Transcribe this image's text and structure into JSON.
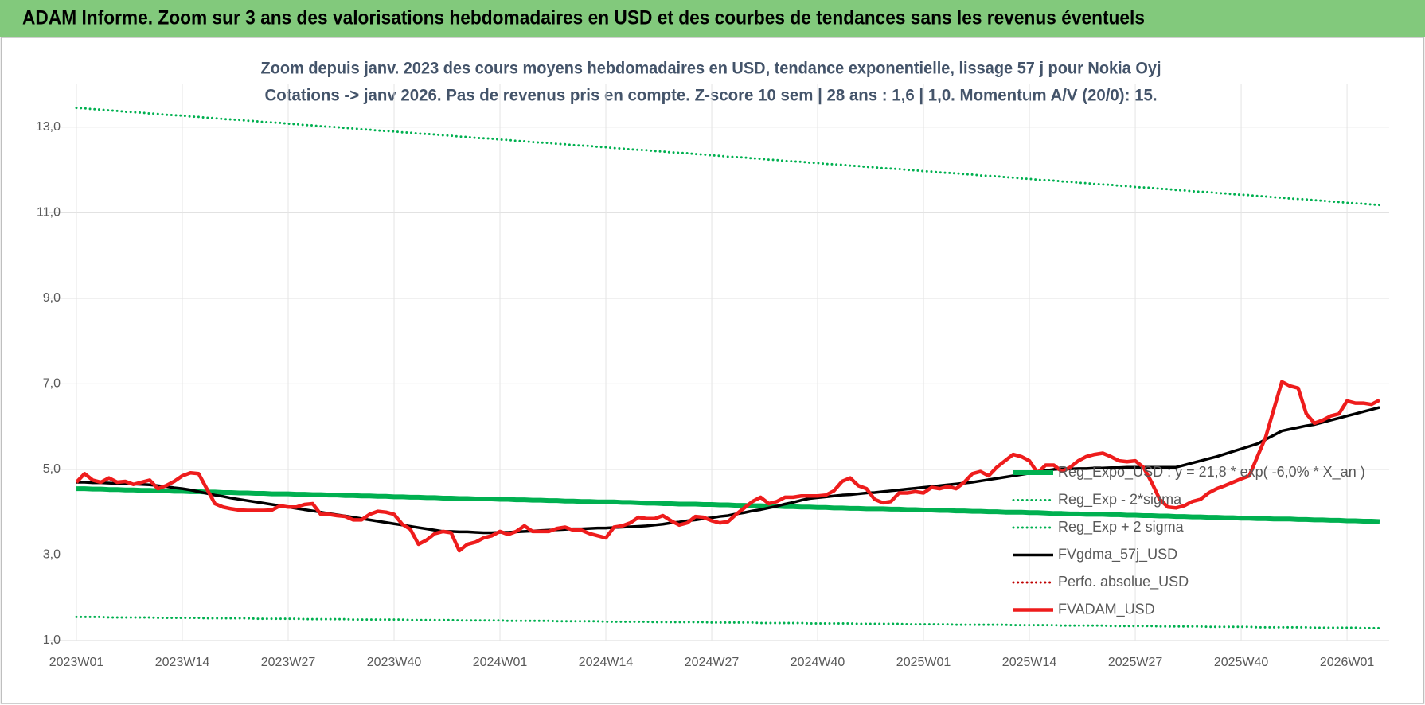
{
  "chart_data": {
    "type": "line",
    "title": "ADAM Informe. Zoom sur 3 ans des valorisations hebdomadaires en USD et des courbes de tendances sans les revenus éventuels",
    "subtitle": [
      "Zoom depuis janv. 2023 des cours moyens hebdomadaires en USD, tendance exponentielle, lissage 57 j pour Nokia Oyj",
      "Cotations -> janv 2026. Pas de revenus pris en compte. Z-score 10 sem  | 28 ans : 1,6 | 1,0. Momentum A/V (20/0): 15."
    ],
    "categories": [
      "2023W01",
      null,
      null,
      null,
      null,
      null,
      null,
      null,
      null,
      null,
      null,
      null,
      null,
      "2023W14",
      null,
      null,
      null,
      null,
      null,
      null,
      null,
      null,
      null,
      null,
      null,
      null,
      "2023W27",
      null,
      null,
      null,
      null,
      null,
      null,
      null,
      null,
      null,
      null,
      null,
      null,
      "2023W40",
      null,
      null,
      null,
      null,
      null,
      null,
      null,
      null,
      null,
      null,
      null,
      null,
      "2024W01",
      null,
      null,
      null,
      null,
      null,
      null,
      null,
      null,
      null,
      null,
      null,
      null,
      "2024W14",
      null,
      null,
      null,
      null,
      null,
      null,
      null,
      null,
      null,
      null,
      null,
      null,
      "2024W27",
      null,
      null,
      null,
      null,
      null,
      null,
      null,
      null,
      null,
      null,
      null,
      null,
      "2024W40",
      null,
      null,
      null,
      null,
      null,
      null,
      null,
      null,
      null,
      null,
      null,
      null,
      "2025W01",
      null,
      null,
      null,
      null,
      null,
      null,
      null,
      null,
      null,
      null,
      null,
      null,
      "2025W14",
      null,
      null,
      null,
      null,
      null,
      null,
      null,
      null,
      null,
      null,
      null,
      null,
      "2025W27",
      null,
      null,
      null,
      null,
      null,
      null,
      null,
      null,
      null,
      null,
      null,
      null,
      "2025W40",
      null,
      null,
      null,
      null,
      null,
      null,
      null,
      null,
      null,
      null,
      null,
      null,
      "2026W01",
      null,
      null,
      null,
      null
    ],
    "ylim": [
      1,
      14
    ],
    "yticks": [
      {
        "value": 1,
        "label": "1,0"
      },
      {
        "value": 3,
        "label": "3,0"
      },
      {
        "value": 5,
        "label": "5,0"
      },
      {
        "value": 7,
        "label": "7,0"
      },
      {
        "value": 9,
        "label": "9,0"
      },
      {
        "value": 11,
        "label": "11,0"
      },
      {
        "value": 13,
        "label": "13,0"
      }
    ],
    "grid": true,
    "legend": "lower right",
    "series": [
      {
        "name": "Reg_Expo_USD : y = 21,8 * exp( -6,0% *  X_an )",
        "color": "#00b050",
        "dash": "solid",
        "width": 6,
        "values": [
          4.55,
          4.55,
          4.54,
          4.54,
          4.53,
          4.53,
          4.52,
          4.52,
          4.51,
          4.51,
          4.5,
          4.5,
          4.49,
          4.49,
          4.48,
          4.48,
          4.47,
          4.47,
          4.46,
          4.46,
          4.45,
          4.45,
          4.44,
          4.44,
          4.43,
          4.43,
          4.43,
          4.42,
          4.42,
          4.41,
          4.41,
          4.4,
          4.4,
          4.39,
          4.39,
          4.38,
          4.38,
          4.37,
          4.37,
          4.36,
          4.36,
          4.35,
          4.35,
          4.34,
          4.34,
          4.33,
          4.33,
          4.32,
          4.32,
          4.31,
          4.31,
          4.31,
          4.3,
          4.3,
          4.29,
          4.29,
          4.28,
          4.28,
          4.27,
          4.27,
          4.26,
          4.26,
          4.25,
          4.25,
          4.24,
          4.24,
          4.24,
          4.23,
          4.23,
          4.22,
          4.21,
          4.21,
          4.2,
          4.2,
          4.19,
          4.19,
          4.19,
          4.18,
          4.18,
          4.17,
          4.17,
          4.16,
          4.16,
          4.15,
          4.15,
          4.14,
          4.14,
          4.13,
          4.13,
          4.12,
          4.12,
          4.11,
          4.11,
          4.1,
          4.1,
          4.09,
          4.09,
          4.08,
          4.08,
          4.08,
          4.07,
          4.07,
          4.06,
          4.06,
          4.05,
          4.05,
          4.04,
          4.04,
          4.03,
          4.03,
          4.02,
          4.02,
          4.01,
          4.01,
          4.0,
          4.0,
          4.0,
          3.99,
          3.99,
          3.98,
          3.97,
          3.97,
          3.96,
          3.96,
          3.95,
          3.95,
          3.95,
          3.94,
          3.94,
          3.93,
          3.93,
          3.92,
          3.92,
          3.91,
          3.91,
          3.9,
          3.9,
          3.89,
          3.89,
          3.88,
          3.88,
          3.87,
          3.87,
          3.86,
          3.86,
          3.85,
          3.85,
          3.84,
          3.84,
          3.84,
          3.83,
          3.83,
          3.82,
          3.82,
          3.81,
          3.81,
          3.8,
          3.8,
          3.79,
          3.79,
          3.78
        ]
      },
      {
        "name": "Reg_Exp - 2*sigma",
        "color": "#00b050",
        "dash": "dotted",
        "width": 3,
        "values": [
          1.55,
          1.55,
          1.55,
          1.55,
          1.54,
          1.54,
          1.54,
          1.54,
          1.54,
          1.54,
          1.53,
          1.53,
          1.53,
          1.53,
          1.53,
          1.53,
          1.52,
          1.52,
          1.52,
          1.52,
          1.52,
          1.52,
          1.51,
          1.51,
          1.51,
          1.51,
          1.51,
          1.51,
          1.5,
          1.5,
          1.5,
          1.5,
          1.5,
          1.5,
          1.49,
          1.49,
          1.49,
          1.49,
          1.49,
          1.49,
          1.49,
          1.48,
          1.48,
          1.48,
          1.48,
          1.48,
          1.48,
          1.47,
          1.47,
          1.47,
          1.47,
          1.47,
          1.47,
          1.46,
          1.46,
          1.46,
          1.46,
          1.46,
          1.46,
          1.45,
          1.45,
          1.45,
          1.45,
          1.45,
          1.45,
          1.44,
          1.44,
          1.44,
          1.44,
          1.44,
          1.44,
          1.43,
          1.43,
          1.43,
          1.43,
          1.43,
          1.43,
          1.43,
          1.42,
          1.42,
          1.42,
          1.42,
          1.42,
          1.42,
          1.41,
          1.41,
          1.41,
          1.41,
          1.41,
          1.41,
          1.4,
          1.4,
          1.4,
          1.4,
          1.4,
          1.4,
          1.39,
          1.39,
          1.39,
          1.39,
          1.39,
          1.39,
          1.38,
          1.38,
          1.38,
          1.38,
          1.38,
          1.38,
          1.37,
          1.37,
          1.37,
          1.37,
          1.37,
          1.37,
          1.37,
          1.36,
          1.36,
          1.36,
          1.36,
          1.36,
          1.36,
          1.35,
          1.35,
          1.35,
          1.35,
          1.35,
          1.35,
          1.34,
          1.34,
          1.34,
          1.34,
          1.34,
          1.34,
          1.33,
          1.33,
          1.33,
          1.33,
          1.33,
          1.33,
          1.32,
          1.32,
          1.32,
          1.32,
          1.32,
          1.32,
          1.31,
          1.31,
          1.31,
          1.31,
          1.31,
          1.31,
          1.31,
          1.3,
          1.3,
          1.3,
          1.3,
          1.3,
          1.3,
          1.29,
          1.29,
          1.29
        ]
      },
      {
        "name": "Reg_Exp + 2 sigma",
        "color": "#00b050",
        "dash": "dotted",
        "width": 3,
        "values": [
          13.45,
          13.44,
          13.42,
          13.41,
          13.39,
          13.38,
          13.36,
          13.35,
          13.34,
          13.32,
          13.31,
          13.29,
          13.28,
          13.27,
          13.25,
          13.24,
          13.22,
          13.21,
          13.19,
          13.18,
          13.17,
          13.15,
          13.14,
          13.12,
          13.11,
          13.1,
          13.08,
          13.07,
          13.05,
          13.04,
          13.02,
          13.01,
          13.0,
          12.98,
          12.97,
          12.95,
          12.94,
          12.92,
          12.91,
          12.9,
          12.88,
          12.87,
          12.85,
          12.84,
          12.83,
          12.81,
          12.8,
          12.78,
          12.77,
          12.75,
          12.74,
          12.73,
          12.71,
          12.7,
          12.68,
          12.67,
          12.65,
          12.64,
          12.63,
          12.61,
          12.6,
          12.58,
          12.57,
          12.56,
          12.54,
          12.53,
          12.51,
          12.5,
          12.48,
          12.47,
          12.46,
          12.44,
          12.43,
          12.41,
          12.4,
          12.39,
          12.37,
          12.36,
          12.34,
          12.33,
          12.31,
          12.3,
          12.29,
          12.27,
          12.26,
          12.24,
          12.23,
          12.21,
          12.2,
          12.19,
          12.17,
          12.16,
          12.14,
          12.13,
          12.12,
          12.1,
          12.09,
          12.07,
          12.06,
          12.04,
          12.03,
          12.02,
          12.0,
          11.99,
          11.97,
          11.96,
          11.94,
          11.93,
          11.92,
          11.9,
          11.89,
          11.87,
          11.86,
          11.85,
          11.83,
          11.82,
          11.8,
          11.79,
          11.77,
          11.76,
          11.75,
          11.73,
          11.72,
          11.7,
          11.69,
          11.67,
          11.66,
          11.65,
          11.63,
          11.62,
          11.6,
          11.59,
          11.58,
          11.56,
          11.55,
          11.53,
          11.52,
          11.5,
          11.49,
          11.48,
          11.46,
          11.45,
          11.43,
          11.42,
          11.41,
          11.39,
          11.38,
          11.36,
          11.35,
          11.33,
          11.32,
          11.31,
          11.29,
          11.28,
          11.26,
          11.25,
          11.23,
          11.22,
          11.21,
          11.19,
          11.18
        ]
      },
      {
        "name": "FVgdma_57j_USD",
        "color": "#000000",
        "dash": "solid",
        "width": 3.5,
        "values": [
          4.7,
          4.7,
          4.69,
          4.69,
          4.68,
          4.67,
          4.67,
          4.66,
          4.65,
          4.64,
          4.62,
          4.6,
          4.57,
          4.55,
          4.52,
          4.48,
          4.44,
          4.4,
          4.37,
          4.33,
          4.3,
          4.27,
          4.24,
          4.21,
          4.18,
          4.15,
          4.12,
          4.09,
          4.06,
          4.03,
          4.0,
          3.97,
          3.94,
          3.91,
          3.88,
          3.85,
          3.82,
          3.79,
          3.76,
          3.73,
          3.7,
          3.67,
          3.64,
          3.61,
          3.58,
          3.55,
          3.55,
          3.54,
          3.54,
          3.53,
          3.52,
          3.52,
          3.53,
          3.53,
          3.54,
          3.55,
          3.56,
          3.57,
          3.58,
          3.59,
          3.6,
          3.61,
          3.61,
          3.62,
          3.63,
          3.63,
          3.64,
          3.65,
          3.66,
          3.67,
          3.68,
          3.7,
          3.72,
          3.75,
          3.77,
          3.8,
          3.82,
          3.85,
          3.87,
          3.9,
          3.92,
          3.96,
          3.99,
          4.03,
          4.06,
          4.1,
          4.14,
          4.19,
          4.23,
          4.28,
          4.32,
          4.34,
          4.36,
          4.38,
          4.4,
          4.41,
          4.43,
          4.45,
          4.46,
          4.48,
          4.5,
          4.52,
          4.54,
          4.56,
          4.58,
          4.6,
          4.62,
          4.64,
          4.66,
          4.68,
          4.7,
          4.73,
          4.76,
          4.79,
          4.82,
          4.85,
          4.88,
          4.91,
          4.94,
          4.97,
          5.0,
          5.01,
          5.01,
          5.02,
          5.02,
          5.03,
          5.03,
          5.04,
          5.04,
          5.05,
          5.05,
          5.05,
          5.05,
          5.05,
          5.05,
          5.05,
          5.1,
          5.15,
          5.2,
          5.25,
          5.3,
          5.36,
          5.42,
          5.48,
          5.54,
          5.6,
          5.7,
          5.8,
          5.9,
          5.94,
          5.98,
          6.02,
          6.05,
          6.1,
          6.15,
          6.2,
          6.25,
          6.3,
          6.35,
          6.4,
          6.45
        ]
      },
      {
        "name": "Perfo. absolue_USD",
        "color": "#c00000",
        "dash": "dotted",
        "width": 3,
        "values": [
          null,
          null,
          null,
          null,
          null,
          null,
          null,
          null,
          null,
          null,
          null,
          null,
          null,
          null,
          null,
          null,
          null,
          null,
          null,
          null,
          null,
          null,
          null,
          null,
          null,
          null,
          null,
          null,
          null,
          null,
          null,
          null,
          null,
          null,
          null,
          null,
          null,
          null,
          null,
          null,
          null,
          null,
          null,
          null,
          null,
          null,
          null,
          null,
          null,
          null,
          null,
          null,
          null,
          null,
          null,
          null,
          null,
          null,
          null,
          null,
          null,
          null,
          null,
          null,
          null,
          null,
          null,
          null,
          null,
          null,
          null,
          null,
          null,
          null,
          null,
          null,
          null,
          null,
          null,
          null,
          null,
          null,
          null,
          null,
          null,
          null,
          null,
          null,
          null,
          null,
          null,
          null,
          null,
          null,
          null,
          null,
          null,
          null,
          null,
          null,
          null,
          null,
          null,
          null,
          null,
          null,
          null,
          null,
          null,
          null,
          null,
          null,
          null,
          null,
          null,
          null,
          null,
          null,
          null,
          null,
          null,
          null,
          null,
          null,
          null,
          null,
          null,
          null,
          null,
          null,
          null,
          null,
          null,
          null,
          null,
          null,
          null,
          null,
          null,
          null,
          null,
          null,
          null,
          null,
          null,
          null,
          null,
          null,
          null,
          null,
          null,
          null,
          null,
          null,
          null,
          null,
          null,
          null,
          null,
          null,
          null
        ]
      },
      {
        "name": "FVADAM_USD",
        "color": "#ee1c1c",
        "dash": "solid",
        "width": 4.5,
        "values": [
          4.7,
          4.9,
          4.75,
          4.7,
          4.8,
          4.7,
          4.72,
          4.65,
          4.7,
          4.75,
          4.55,
          4.62,
          4.72,
          4.85,
          4.92,
          4.9,
          4.55,
          4.2,
          4.12,
          4.08,
          4.05,
          4.04,
          4.04,
          4.04,
          4.05,
          4.15,
          4.12,
          4.12,
          4.18,
          4.2,
          3.95,
          3.95,
          3.92,
          3.9,
          3.82,
          3.82,
          3.95,
          4.02,
          4.0,
          3.95,
          3.72,
          3.6,
          3.25,
          3.35,
          3.5,
          3.55,
          3.52,
          3.1,
          3.25,
          3.3,
          3.4,
          3.45,
          3.55,
          3.48,
          3.55,
          3.68,
          3.55,
          3.55,
          3.55,
          3.62,
          3.65,
          3.58,
          3.58,
          3.5,
          3.45,
          3.4,
          3.65,
          3.68,
          3.75,
          3.88,
          3.85,
          3.85,
          3.92,
          3.8,
          3.7,
          3.75,
          3.9,
          3.88,
          3.8,
          3.75,
          3.78,
          3.95,
          4.1,
          4.25,
          4.35,
          4.2,
          4.25,
          4.35,
          4.35,
          4.38,
          4.38,
          4.38,
          4.4,
          4.5,
          4.72,
          4.8,
          4.62,
          4.55,
          4.3,
          4.22,
          4.25,
          4.45,
          4.45,
          4.48,
          4.45,
          4.58,
          4.55,
          4.6,
          4.55,
          4.7,
          4.9,
          4.95,
          4.85,
          5.05,
          5.2,
          5.35,
          5.3,
          5.2,
          4.92,
          5.1,
          5.1,
          4.95,
          5.05,
          5.2,
          5.3,
          5.35,
          5.38,
          5.3,
          5.2,
          5.18,
          5.2,
          5.05,
          4.7,
          4.3,
          4.12,
          4.1,
          4.15,
          4.25,
          4.3,
          4.45,
          4.55,
          4.62,
          4.7,
          4.78,
          4.85,
          5.3,
          5.75,
          6.4,
          7.05,
          6.95,
          6.9,
          6.3,
          6.08,
          6.15,
          6.25,
          6.3,
          6.6,
          6.55,
          6.55,
          6.52,
          6.62
        ]
      }
    ]
  }
}
